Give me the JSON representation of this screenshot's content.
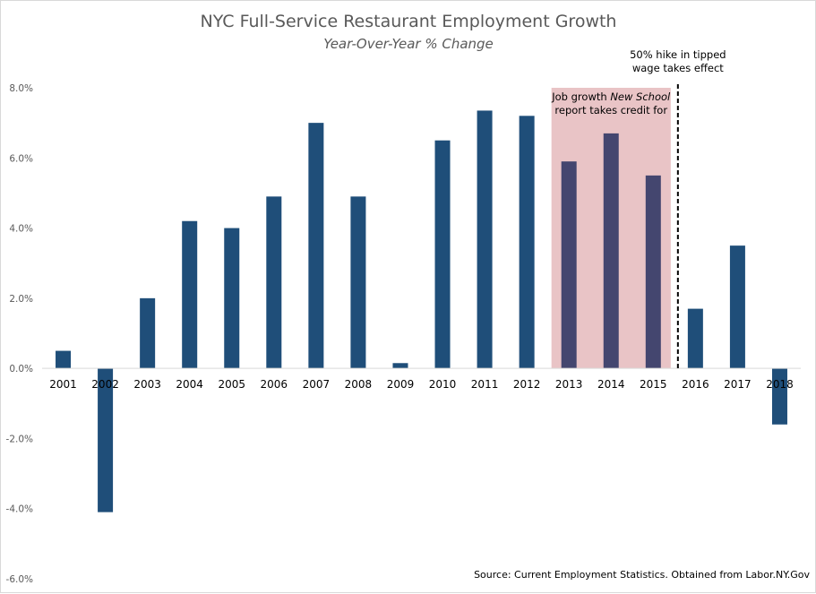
{
  "chart_data": {
    "type": "bar",
    "title": "NYC Full-Service Restaurant Employment Growth",
    "subtitle": "Year-Over-Year % Change",
    "categories": [
      "2001",
      "2002",
      "2003",
      "2004",
      "2005",
      "2006",
      "2007",
      "2008",
      "2009",
      "2010",
      "2011",
      "2012",
      "2013",
      "2014",
      "2015",
      "2016",
      "2017",
      "2018"
    ],
    "values": [
      0.5,
      -4.1,
      2.0,
      4.2,
      4.0,
      4.9,
      7.0,
      4.9,
      0.15,
      6.5,
      7.35,
      7.2,
      5.9,
      6.7,
      5.5,
      1.7,
      3.5,
      -1.6
    ],
    "ylim": [
      -6,
      8
    ],
    "yticks": [
      "8.0%",
      "6.0%",
      "4.0%",
      "2.0%",
      "0.0%",
      "-2.0%",
      "-4.0%",
      "-6.0%"
    ],
    "ytick_values": [
      8,
      6,
      4,
      2,
      0,
      -2,
      -4,
      -6
    ],
    "grid": false,
    "bar_color": "#1f4e79",
    "highlight": {
      "range": [
        "2013",
        "2015"
      ],
      "color": "#e9c4c6",
      "bar_color": "#44466f",
      "label_before": "Job growth ",
      "label_italic": "New School",
      "label_line2": "report takes credit for"
    },
    "marker": {
      "between": [
        "2015",
        "2016"
      ],
      "style": "dashed",
      "label_line1": "50% hike in tipped",
      "label_line2": "wage takes effect"
    },
    "source": "Source: Current Employment Statistics. Obtained from Labor.NY.Gov"
  }
}
